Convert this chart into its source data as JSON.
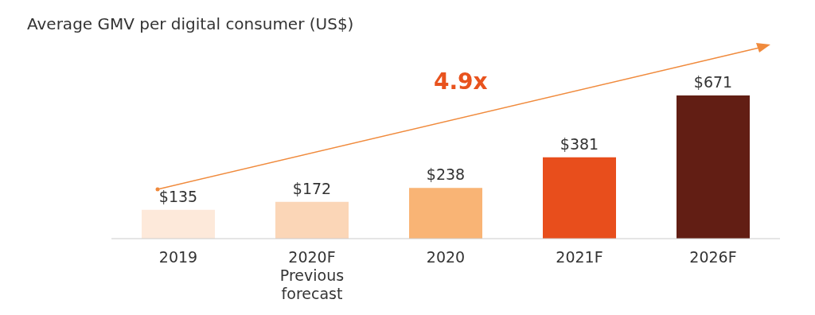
{
  "chart_data": {
    "type": "bar",
    "title": "Average GMV per digital consumer (US$)",
    "categories": [
      "2019",
      "2020F\nPrevious\nforecast",
      "2020",
      "2021F",
      "2026F"
    ],
    "values": [
      135,
      172,
      238,
      381,
      671
    ],
    "colors": [
      "#fde9da",
      "#fbd6b7",
      "#f9b475",
      "#e84e1c",
      "#621e14"
    ],
    "value_labels": [
      "$135",
      "$172",
      "$238",
      "$381",
      "$671"
    ],
    "annotations": [
      "4.9x"
    ]
  }
}
